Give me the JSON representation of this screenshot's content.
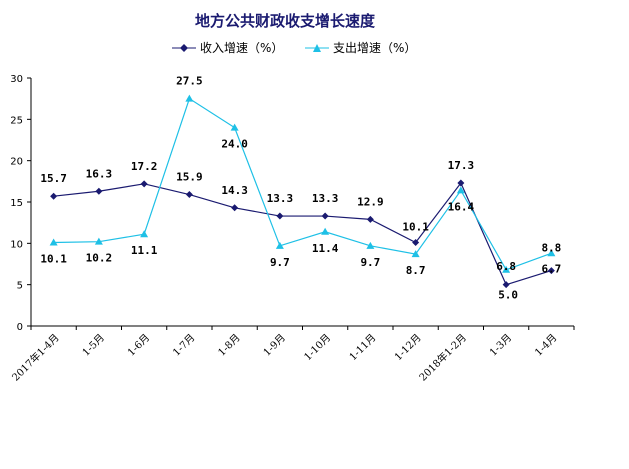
{
  "chart_data": {
    "type": "line",
    "title": "地方公共财政收支增长速度",
    "categories": [
      "2017年1-4月",
      "1-5月",
      "1-6月",
      "1-7月",
      "1-8月",
      "1-9月",
      "1-10月",
      "1-11月",
      "1-12月",
      "2018年1-2月",
      "1-3月",
      "1-4月"
    ],
    "series": [
      {
        "name": "收入增速（%）",
        "values": [
          15.7,
          16.3,
          17.2,
          15.9,
          14.3,
          13.3,
          13.3,
          12.9,
          10.1,
          17.3,
          5.0,
          6.7
        ],
        "labels": [
          "15.7",
          "16.3",
          "17.2",
          "15.9",
          "14.3",
          "13.3",
          "13.3",
          "12.9",
          "10.1",
          "17.3",
          "5.0",
          "6.7"
        ],
        "color": "#1a1a70",
        "marker": "diamond"
      },
      {
        "name": "支出增速（%）",
        "values": [
          10.1,
          10.2,
          11.1,
          27.5,
          24.0,
          9.7,
          11.4,
          9.7,
          8.7,
          16.4,
          6.8,
          8.8
        ],
        "labels": [
          "10.1",
          "10.2",
          "11.1",
          "27.5",
          "24.0",
          "9.7",
          "11.4",
          "9.7",
          "8.7",
          "16.4",
          "6.8",
          "8.8"
        ],
        "color": "#1ec0e6",
        "marker": "triangle"
      }
    ],
    "yticks": [
      "0",
      "5",
      "10",
      "15",
      "20",
      "25",
      "30"
    ],
    "ylim": [
      0,
      30
    ],
    "grid": false,
    "legend": "top-center"
  }
}
